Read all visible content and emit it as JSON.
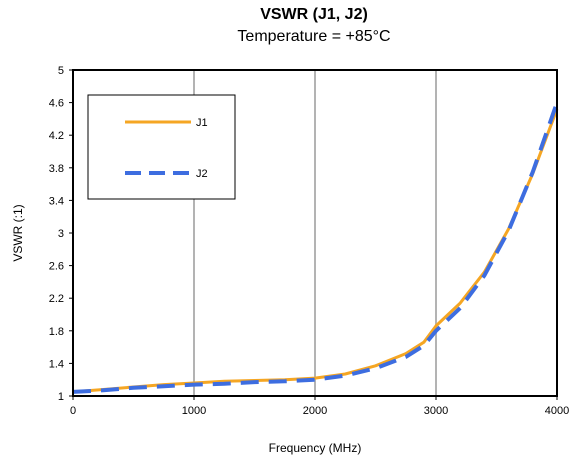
{
  "chart_data": {
    "type": "line",
    "title": "VSWR (J1, J2)",
    "subtitle": "Temperature = +85°C",
    "xlabel": "Frequency (MHz)",
    "ylabel": "VSWR (:1)",
    "xlim": [
      0,
      4000
    ],
    "ylim": [
      1,
      5
    ],
    "x_ticks": [
      "0",
      "1000",
      "2000",
      "3000",
      "4000"
    ],
    "y_ticks": [
      "1",
      "1.4",
      "1.8",
      "2.2",
      "2.6",
      "3",
      "3.4",
      "3.8",
      "4.2",
      "4.6",
      "5"
    ],
    "grid": "vertical",
    "legend_position": "top-left",
    "series": [
      {
        "name": "J1",
        "color": "#F5A623",
        "style": "solid",
        "x": [
          0,
          250,
          500,
          750,
          1000,
          1250,
          1500,
          1750,
          2000,
          2250,
          2500,
          2750,
          2900,
          3000,
          3200,
          3400,
          3600,
          3800,
          4000
        ],
        "y": [
          1.05,
          1.08,
          1.11,
          1.14,
          1.16,
          1.18,
          1.19,
          1.2,
          1.22,
          1.27,
          1.37,
          1.52,
          1.66,
          1.86,
          2.14,
          2.52,
          3.05,
          3.73,
          4.52
        ]
      },
      {
        "name": "J2",
        "color": "#3D6DE0",
        "style": "dashed",
        "x": [
          0,
          250,
          500,
          750,
          1000,
          1250,
          1500,
          1750,
          2000,
          2250,
          2500,
          2750,
          2900,
          3000,
          3200,
          3400,
          3600,
          3800,
          4000
        ],
        "y": [
          1.05,
          1.07,
          1.1,
          1.12,
          1.14,
          1.15,
          1.17,
          1.18,
          1.2,
          1.25,
          1.34,
          1.48,
          1.62,
          1.8,
          2.08,
          2.48,
          3.03,
          3.75,
          4.6
        ]
      }
    ]
  }
}
